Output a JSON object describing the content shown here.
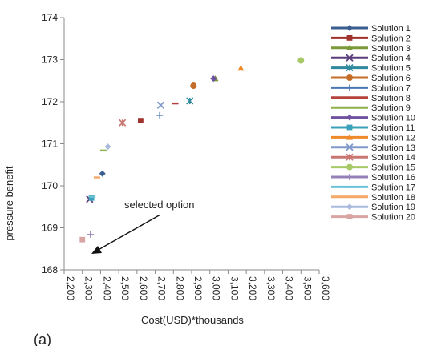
{
  "chart_data": {
    "type": "scatter",
    "title": "",
    "panel_label": "(a)",
    "xlabel": "Cost(USD)*thousands",
    "ylabel": "pressure  benefit",
    "xlim": [
      2200,
      3600
    ],
    "ylim": [
      168,
      174
    ],
    "xticks": [
      2200,
      2300,
      2400,
      2500,
      2600,
      2700,
      2800,
      2900,
      3000,
      3100,
      3200,
      3300,
      3400,
      3500,
      3600
    ],
    "xtick_labels": [
      "2,200",
      "2,300",
      "2,400",
      "2,500",
      "2,600",
      "2,700",
      "2,800",
      "2,900",
      "3,000",
      "3,100",
      "3,200",
      "3,300",
      "3,400",
      "3,500",
      "3,600"
    ],
    "yticks": [
      168,
      169,
      170,
      171,
      172,
      173,
      174
    ],
    "ytick_labels": [
      "168",
      "169",
      "170",
      "171",
      "172",
      "173",
      "174"
    ],
    "grid": false,
    "legend_position": "right",
    "annotation": {
      "text": "selected option",
      "target_series": "Solution 16"
    },
    "series": [
      {
        "name": "Solution 1",
        "marker": "diamond",
        "color": "#3b5f91",
        "x": 2410,
        "y": 170.29
      },
      {
        "name": "Solution 2",
        "marker": "square",
        "color": "#a0322d",
        "x": 2620,
        "y": 171.55
      },
      {
        "name": "Solution 3",
        "marker": "triangle",
        "color": "#7a9a3a",
        "x": 3030,
        "y": 172.55
      },
      {
        "name": "Solution 4",
        "marker": "x",
        "color": "#5b3d7a",
        "x": 2340,
        "y": 169.68
      },
      {
        "name": "Solution 5",
        "marker": "star",
        "color": "#2e8a9c",
        "x": 2890,
        "y": 172.02
      },
      {
        "name": "Solution 6",
        "marker": "circle",
        "color": "#c46d28",
        "x": 2910,
        "y": 172.38
      },
      {
        "name": "Solution 7",
        "marker": "plus",
        "color": "#4a78b5",
        "x": 2725,
        "y": 171.68
      },
      {
        "name": "Solution 8",
        "marker": "dash",
        "color": "#b5413a",
        "x": 2810,
        "y": 171.96
      },
      {
        "name": "Solution 9",
        "marker": "dash",
        "color": "#8db04d",
        "x": 2415,
        "y": 170.84
      },
      {
        "name": "Solution 10",
        "marker": "diamond",
        "color": "#7052a0",
        "x": 3020,
        "y": 172.55
      },
      {
        "name": "Solution 11",
        "marker": "square",
        "color": "#3aa1b8",
        "x": 2350,
        "y": 169.71
      },
      {
        "name": "Solution 12",
        "marker": "triangle",
        "color": "#ee8a2a",
        "x": 3170,
        "y": 172.8
      },
      {
        "name": "Solution 13",
        "marker": "x",
        "color": "#8099c9",
        "x": 2730,
        "y": 171.92
      },
      {
        "name": "Solution 14",
        "marker": "star",
        "color": "#c87670",
        "x": 2520,
        "y": 171.5
      },
      {
        "name": "Solution 15",
        "marker": "circle",
        "color": "#a7c968",
        "x": 3500,
        "y": 172.98
      },
      {
        "name": "Solution 16",
        "marker": "plus",
        "color": "#9580b8",
        "x": 2345,
        "y": 168.84
      },
      {
        "name": "Solution 17",
        "marker": "dash",
        "color": "#6fc3d6",
        "x": 2355,
        "y": 169.74
      },
      {
        "name": "Solution 18",
        "marker": "dash",
        "color": "#f4a766",
        "x": 2380,
        "y": 170.2
      },
      {
        "name": "Solution 19",
        "marker": "diamond",
        "color": "#a9badf",
        "x": 2440,
        "y": 170.93
      },
      {
        "name": "Solution 20",
        "marker": "square",
        "color": "#d9a5a2",
        "x": 2300,
        "y": 168.72
      }
    ]
  }
}
